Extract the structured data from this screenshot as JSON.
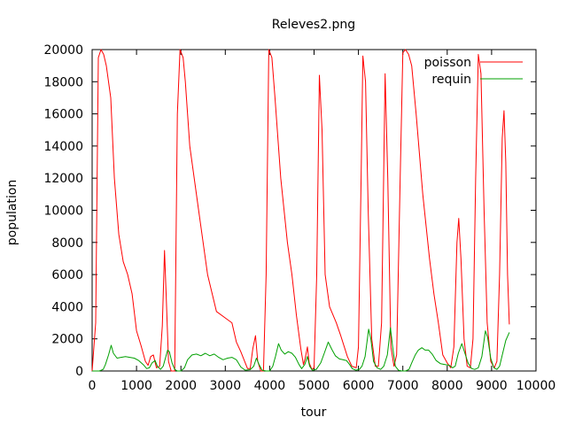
{
  "chart_data": {
    "type": "line",
    "title": "Releves2.png",
    "xlabel": "tour",
    "ylabel": "population",
    "xlim": [
      0,
      10000
    ],
    "ylim": [
      0,
      20000
    ],
    "grid": false,
    "legend_position": "top-right",
    "x_ticks": [
      0,
      1000,
      2000,
      3000,
      4000,
      5000,
      6000,
      7000,
      8000,
      9000,
      10000
    ],
    "y_ticks": [
      0,
      2000,
      4000,
      6000,
      8000,
      10000,
      12000,
      14000,
      16000,
      18000,
      20000
    ],
    "series": [
      {
        "name": "poisson",
        "color": "#ff0000",
        "points": [
          [
            0,
            0
          ],
          [
            80,
            3000
          ],
          [
            140,
            19500
          ],
          [
            200,
            20000
          ],
          [
            260,
            19700
          ],
          [
            320,
            19000
          ],
          [
            420,
            17000
          ],
          [
            500,
            12000
          ],
          [
            600,
            8500
          ],
          [
            700,
            6800
          ],
          [
            800,
            6000
          ],
          [
            900,
            4800
          ],
          [
            1000,
            2500
          ],
          [
            1100,
            1600
          ],
          [
            1200,
            600
          ],
          [
            1260,
            350
          ],
          [
            1320,
            900
          ],
          [
            1380,
            1000
          ],
          [
            1450,
            200
          ],
          [
            1520,
            300
          ],
          [
            1580,
            2800
          ],
          [
            1630,
            7500
          ],
          [
            1670,
            4500
          ],
          [
            1720,
            600
          ],
          [
            1780,
            0
          ],
          [
            1860,
            0
          ],
          [
            1920,
            16000
          ],
          [
            1980,
            20000
          ],
          [
            2050,
            19500
          ],
          [
            2100,
            18000
          ],
          [
            2200,
            14000
          ],
          [
            2400,
            10000
          ],
          [
            2600,
            6000
          ],
          [
            2800,
            3700
          ],
          [
            3000,
            3300
          ],
          [
            3150,
            3000
          ],
          [
            3250,
            1800
          ],
          [
            3350,
            1200
          ],
          [
            3500,
            150
          ],
          [
            3560,
            150
          ],
          [
            3620,
            1400
          ],
          [
            3680,
            2200
          ],
          [
            3730,
            600
          ],
          [
            3800,
            0
          ],
          [
            3860,
            0
          ],
          [
            3920,
            6000
          ],
          [
            3980,
            20000
          ],
          [
            4050,
            19500
          ],
          [
            4120,
            17000
          ],
          [
            4250,
            12000
          ],
          [
            4400,
            8000
          ],
          [
            4500,
            6000
          ],
          [
            4600,
            3500
          ],
          [
            4700,
            1400
          ],
          [
            4760,
            400
          ],
          [
            4800,
            800
          ],
          [
            4850,
            1500
          ],
          [
            4890,
            500
          ],
          [
            4950,
            100
          ],
          [
            5000,
            200
          ],
          [
            5060,
            6000
          ],
          [
            5120,
            18400
          ],
          [
            5180,
            15000
          ],
          [
            5250,
            6000
          ],
          [
            5350,
            4000
          ],
          [
            5500,
            3000
          ],
          [
            5600,
            2200
          ],
          [
            5750,
            900
          ],
          [
            5850,
            300
          ],
          [
            5950,
            200
          ],
          [
            6000,
            1500
          ],
          [
            6060,
            12000
          ],
          [
            6100,
            19600
          ],
          [
            6160,
            18000
          ],
          [
            6220,
            10000
          ],
          [
            6300,
            2000
          ],
          [
            6380,
            300
          ],
          [
            6450,
            300
          ],
          [
            6520,
            3000
          ],
          [
            6600,
            18500
          ],
          [
            6660,
            12000
          ],
          [
            6730,
            1500
          ],
          [
            6800,
            300
          ],
          [
            6860,
            1000
          ],
          [
            6940,
            12000
          ],
          [
            7000,
            19800
          ],
          [
            7060,
            20000
          ],
          [
            7130,
            19700
          ],
          [
            7200,
            19000
          ],
          [
            7300,
            16000
          ],
          [
            7450,
            11000
          ],
          [
            7600,
            7000
          ],
          [
            7700,
            4800
          ],
          [
            7800,
            3000
          ],
          [
            7900,
            1000
          ],
          [
            8000,
            500
          ],
          [
            8080,
            200
          ],
          [
            8150,
            1500
          ],
          [
            8220,
            8000
          ],
          [
            8260,
            9500
          ],
          [
            8310,
            7000
          ],
          [
            8380,
            2000
          ],
          [
            8450,
            300
          ],
          [
            8520,
            200
          ],
          [
            8580,
            2000
          ],
          [
            8640,
            12000
          ],
          [
            8700,
            19700
          ],
          [
            8760,
            18500
          ],
          [
            8830,
            10000
          ],
          [
            8900,
            3000
          ],
          [
            8980,
            600
          ],
          [
            9060,
            200
          ],
          [
            9120,
            600
          ],
          [
            9180,
            6000
          ],
          [
            9240,
            14500
          ],
          [
            9280,
            16200
          ],
          [
            9320,
            13000
          ],
          [
            9360,
            6000
          ],
          [
            9400,
            2900
          ]
        ]
      },
      {
        "name": "requin",
        "color": "#00a000",
        "points": [
          [
            0,
            0
          ],
          [
            80,
            0
          ],
          [
            160,
            0
          ],
          [
            250,
            100
          ],
          [
            300,
            400
          ],
          [
            370,
            1000
          ],
          [
            430,
            1600
          ],
          [
            480,
            1100
          ],
          [
            560,
            800
          ],
          [
            650,
            850
          ],
          [
            750,
            900
          ],
          [
            850,
            850
          ],
          [
            950,
            800
          ],
          [
            1050,
            650
          ],
          [
            1150,
            400
          ],
          [
            1230,
            150
          ],
          [
            1290,
            200
          ],
          [
            1350,
            500
          ],
          [
            1420,
            650
          ],
          [
            1470,
            300
          ],
          [
            1540,
            100
          ],
          [
            1600,
            300
          ],
          [
            1660,
            900
          ],
          [
            1700,
            1300
          ],
          [
            1740,
            1200
          ],
          [
            1800,
            500
          ],
          [
            1860,
            100
          ],
          [
            1920,
            0
          ],
          [
            2000,
            0
          ],
          [
            2080,
            200
          ],
          [
            2150,
            700
          ],
          [
            2250,
            1000
          ],
          [
            2350,
            1050
          ],
          [
            2450,
            950
          ],
          [
            2550,
            1100
          ],
          [
            2650,
            950
          ],
          [
            2750,
            1050
          ],
          [
            2850,
            850
          ],
          [
            2950,
            700
          ],
          [
            3050,
            800
          ],
          [
            3150,
            850
          ],
          [
            3250,
            700
          ],
          [
            3350,
            250
          ],
          [
            3450,
            50
          ],
          [
            3560,
            80
          ],
          [
            3640,
            300
          ],
          [
            3700,
            800
          ],
          [
            3760,
            400
          ],
          [
            3830,
            50
          ],
          [
            3920,
            0
          ],
          [
            4000,
            0
          ],
          [
            4070,
            300
          ],
          [
            4130,
            900
          ],
          [
            4200,
            1700
          ],
          [
            4260,
            1300
          ],
          [
            4340,
            1050
          ],
          [
            4420,
            1200
          ],
          [
            4500,
            1100
          ],
          [
            4580,
            850
          ],
          [
            4660,
            400
          ],
          [
            4720,
            150
          ],
          [
            4790,
            400
          ],
          [
            4850,
            900
          ],
          [
            4900,
            300
          ],
          [
            4960,
            50
          ],
          [
            5050,
            100
          ],
          [
            5150,
            500
          ],
          [
            5230,
            1100
          ],
          [
            5320,
            1800
          ],
          [
            5400,
            1350
          ],
          [
            5480,
            950
          ],
          [
            5570,
            750
          ],
          [
            5650,
            700
          ],
          [
            5730,
            650
          ],
          [
            5800,
            400
          ],
          [
            5860,
            150
          ],
          [
            5940,
            50
          ],
          [
            6020,
            100
          ],
          [
            6080,
            300
          ],
          [
            6150,
            900
          ],
          [
            6230,
            2600
          ],
          [
            6280,
            2000
          ],
          [
            6340,
            600
          ],
          [
            6420,
            200
          ],
          [
            6500,
            100
          ],
          [
            6570,
            300
          ],
          [
            6650,
            1000
          ],
          [
            6720,
            2700
          ],
          [
            6770,
            1500
          ],
          [
            6830,
            300
          ],
          [
            6900,
            50
          ],
          [
            6980,
            0
          ],
          [
            7060,
            0
          ],
          [
            7140,
            100
          ],
          [
            7200,
            500
          ],
          [
            7280,
            1000
          ],
          [
            7350,
            1300
          ],
          [
            7430,
            1450
          ],
          [
            7500,
            1300
          ],
          [
            7580,
            1300
          ],
          [
            7660,
            1050
          ],
          [
            7750,
            650
          ],
          [
            7850,
            450
          ],
          [
            7950,
            400
          ],
          [
            8050,
            350
          ],
          [
            8120,
            200
          ],
          [
            8180,
            300
          ],
          [
            8250,
            1100
          ],
          [
            8330,
            1700
          ],
          [
            8400,
            1100
          ],
          [
            8470,
            500
          ],
          [
            8550,
            150
          ],
          [
            8620,
            100
          ],
          [
            8700,
            200
          ],
          [
            8780,
            900
          ],
          [
            8860,
            2500
          ],
          [
            8910,
            2100
          ],
          [
            8980,
            800
          ],
          [
            9050,
            200
          ],
          [
            9120,
            100
          ],
          [
            9180,
            300
          ],
          [
            9250,
            1100
          ],
          [
            9320,
            1900
          ],
          [
            9400,
            2400
          ]
        ]
      }
    ]
  }
}
